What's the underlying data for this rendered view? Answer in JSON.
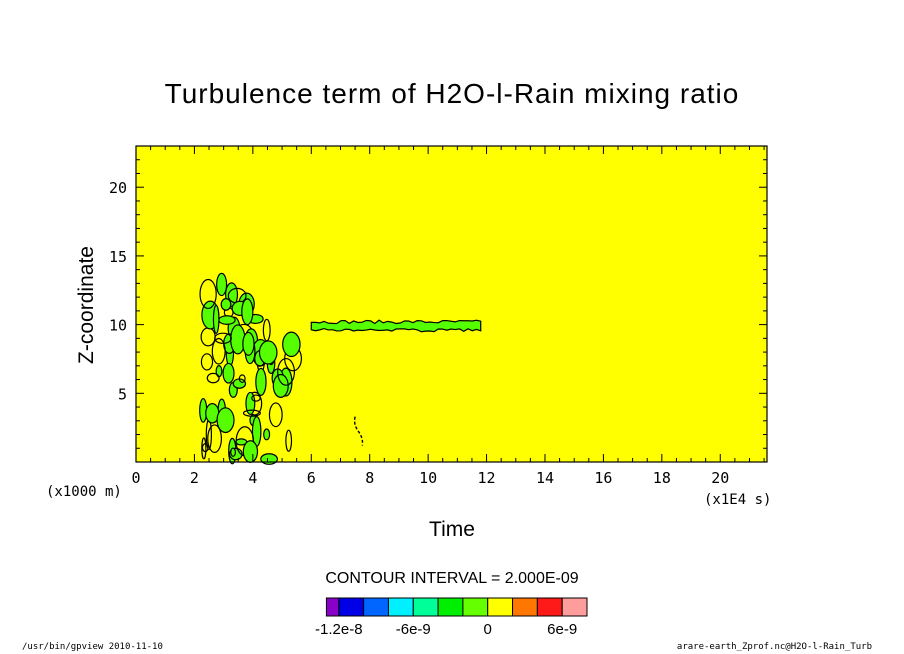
{
  "chart_data": {
    "type": "contour",
    "title": "Turbulence term of H2O-l-Rain mixing ratio",
    "xlabel": "Time",
    "ylabel": "Z-coordinate",
    "x_unit_label": "(x1E4 s)",
    "y_unit_label": "(x1000 m)",
    "xlim": [
      0,
      21.6
    ],
    "ylim": [
      0,
      23
    ],
    "x_ticks": [
      0,
      2,
      4,
      6,
      8,
      10,
      12,
      14,
      16,
      18,
      20
    ],
    "y_ticks": [
      5,
      10,
      15,
      20
    ],
    "contour_interval_text": "CONTOUR INTERVAL = 2.000E-09",
    "background_color": "#ffff00",
    "features": [
      {
        "kind": "convective-patches",
        "x": [
          2.3,
          6.0
        ],
        "y": [
          0,
          13
        ],
        "fill": "#55ff00"
      },
      {
        "kind": "anvil-layer",
        "x": [
          6.0,
          11.8
        ],
        "y": [
          9.6,
          10.2
        ],
        "fill": "#55ff00"
      },
      {
        "kind": "isolated-contour",
        "x": [
          7.4,
          7.8
        ],
        "y": [
          1.2,
          3.3
        ]
      }
    ],
    "colorbar": {
      "colors": [
        "#8a00c8",
        "#0000e6",
        "#0066ff",
        "#00f0ff",
        "#00ff99",
        "#00ee00",
        "#66ff00",
        "#ffff00",
        "#ff7700",
        "#ff1a1a",
        "#ff9c9c"
      ],
      "tick_labels": [
        "-1.2e-8",
        "-6e-9",
        "0",
        "6e-9"
      ]
    }
  },
  "footer": {
    "left": "/usr/bin/gpview  2010-11-10",
    "right": "arare-earth_Zprof.nc@H2O-l-Rain_Turb"
  }
}
